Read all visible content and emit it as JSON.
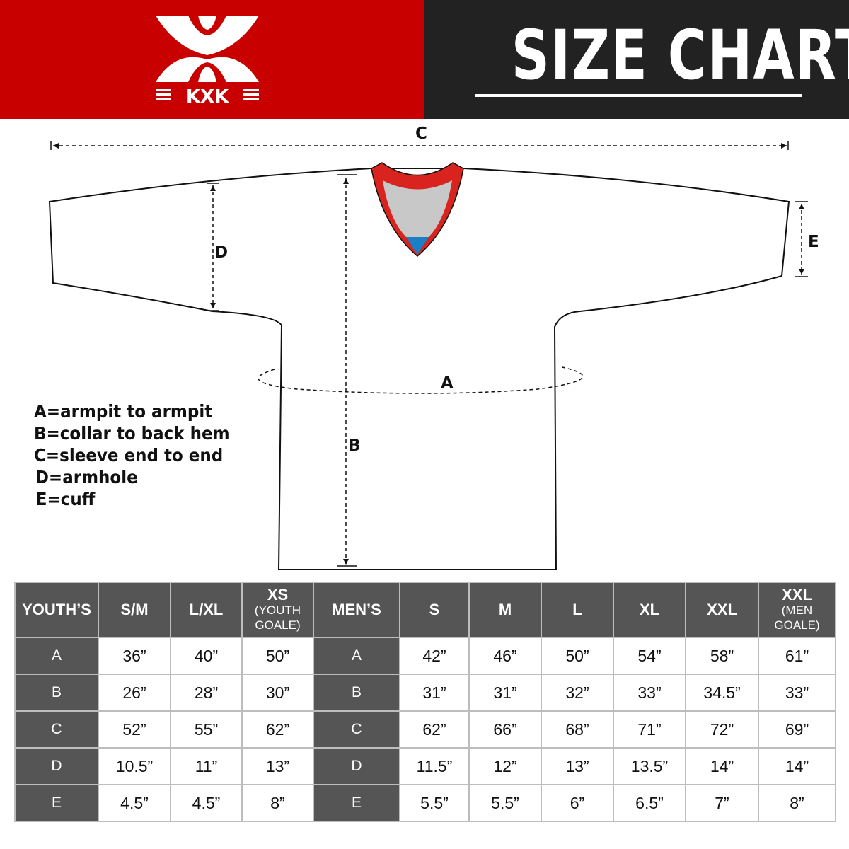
{
  "brand": {
    "logo_text": "KXK",
    "colors": {
      "red": "#c80000",
      "dark": "#222222",
      "table_header": "#555556"
    }
  },
  "header": {
    "title": "SIZE CHART"
  },
  "diagram": {
    "labels": {
      "A": "A",
      "B": "B",
      "C": "C",
      "D": "D",
      "E": "E"
    }
  },
  "legend": [
    "A=armpit to armpit",
    "B=collar to back hem",
    "C=sleeve end to end",
    "D=armhole",
    "E=cuff"
  ],
  "table": {
    "headers": [
      {
        "main": "YOUTH’S",
        "sub": ""
      },
      {
        "main": "S/M",
        "sub": ""
      },
      {
        "main": "L/XL",
        "sub": ""
      },
      {
        "main": "XS",
        "sub": "(YOUTH GOALE)"
      },
      {
        "main": "MEN’S",
        "sub": ""
      },
      {
        "main": "S",
        "sub": ""
      },
      {
        "main": "M",
        "sub": ""
      },
      {
        "main": "L",
        "sub": ""
      },
      {
        "main": "XL",
        "sub": ""
      },
      {
        "main": "XXL",
        "sub": ""
      },
      {
        "main": "XXL",
        "sub": "(MEN GOALE)"
      }
    ],
    "rows": [
      {
        "youth_label": "A",
        "youth": [
          "36”",
          "40”",
          "50”"
        ],
        "men_label": "A",
        "men": [
          "42”",
          "46”",
          "50”",
          "54”",
          "58”",
          "61”"
        ]
      },
      {
        "youth_label": "B",
        "youth": [
          "26”",
          "28”",
          "30”"
        ],
        "men_label": "B",
        "men": [
          "31”",
          "31”",
          "32”",
          "33”",
          "34.5”",
          "33”"
        ]
      },
      {
        "youth_label": "C",
        "youth": [
          "52”",
          "55”",
          "62”"
        ],
        "men_label": "C",
        "men": [
          "62”",
          "66”",
          "68”",
          "71”",
          "72”",
          "69”"
        ]
      },
      {
        "youth_label": "D",
        "youth": [
          "10.5”",
          "11”",
          "13”"
        ],
        "men_label": "D",
        "men": [
          "11.5”",
          "12”",
          "13”",
          "13.5”",
          "14”",
          "14”"
        ]
      },
      {
        "youth_label": "E",
        "youth": [
          "4.5”",
          "4.5”",
          "8”"
        ],
        "men_label": "E",
        "men": [
          "5.5”",
          "5.5”",
          "6”",
          "6.5”",
          "7”",
          "8”"
        ]
      }
    ]
  }
}
